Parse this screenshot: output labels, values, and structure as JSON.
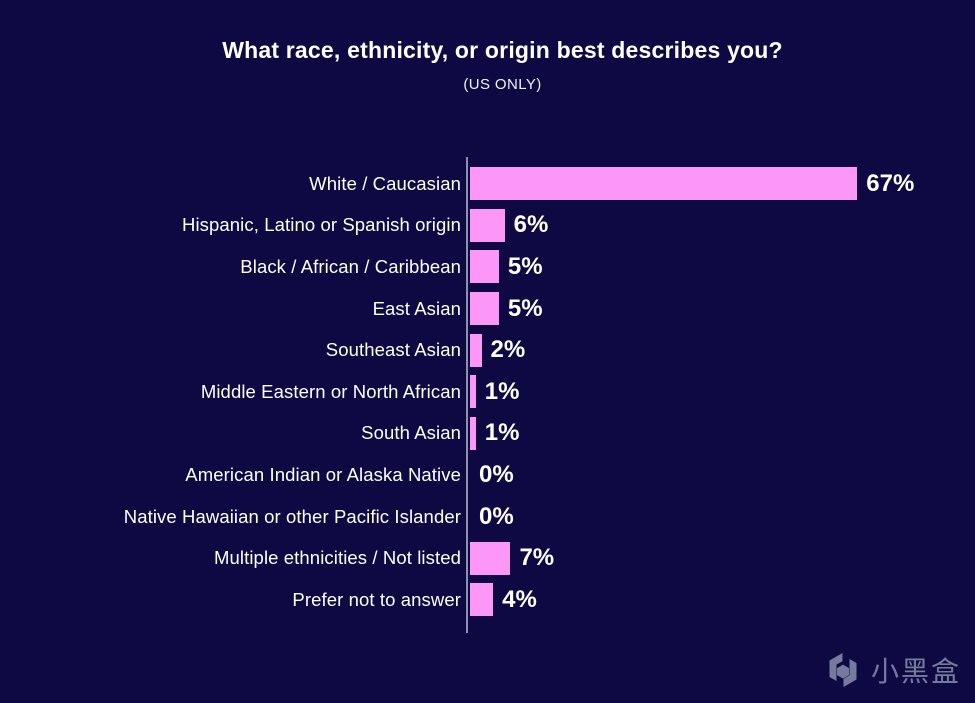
{
  "page": {
    "background_color": "#0E0942"
  },
  "chart_data": {
    "type": "bar",
    "orientation": "horizontal",
    "title": "What race, ethnicity, or origin best describes you?",
    "subtitle": "(US ONLY)",
    "categories": [
      "White / Caucasian",
      "Hispanic, Latino or Spanish origin",
      "Black / African / Caribbean",
      "East Asian",
      "Southeast Asian",
      "Middle Eastern or North African",
      "South Asian",
      "American Indian or Alaska Native",
      "Native Hawaiian or other Pacific Islander",
      "Multiple ethnicities / Not listed",
      "Prefer not to answer"
    ],
    "values": [
      67,
      6,
      5,
      5,
      2,
      1,
      1,
      0,
      0,
      7,
      4
    ],
    "value_labels": [
      "67%",
      "6%",
      "5%",
      "5%",
      "2%",
      "1%",
      "1%",
      "0%",
      "0%",
      "7%",
      "4%"
    ],
    "xlim": [
      0,
      78
    ],
    "grid": false,
    "legend": false,
    "bar_color": "#FC96F7",
    "axis_color": "#8D91AE",
    "label_color": "#FFFFFF",
    "value_label_color": "#FFFFFF"
  },
  "watermark": {
    "icon": "heybox-logo",
    "text": "小黑盒",
    "color": "#767B9D"
  }
}
